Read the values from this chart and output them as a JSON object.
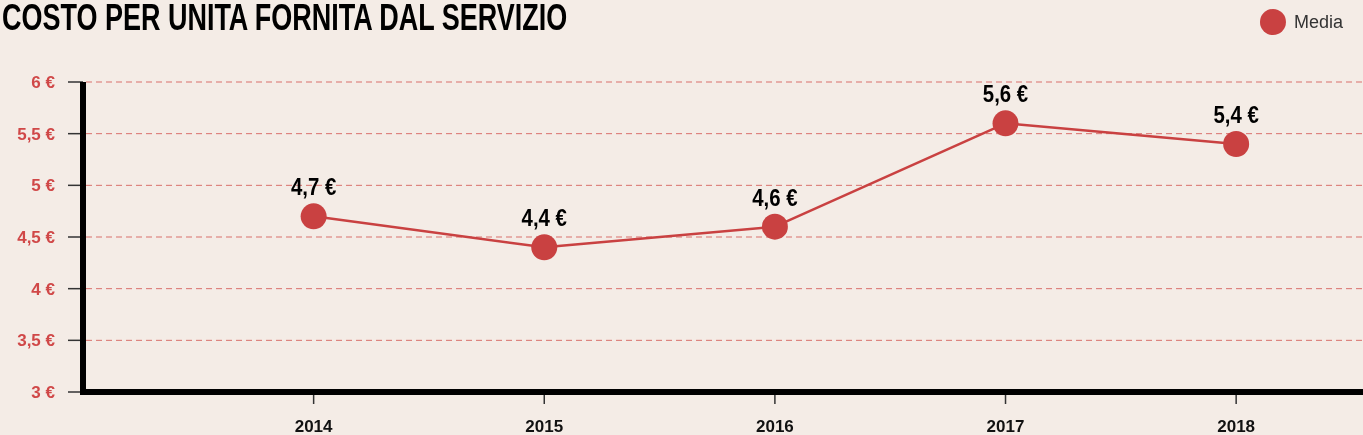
{
  "chart_data": {
    "type": "line",
    "title": "COSTO PER UNITA FORNITA DAL SERVIZIO",
    "x": [
      2014,
      2015,
      2016,
      2017,
      2018
    ],
    "series": [
      {
        "name": "Media",
        "color": "#c94141",
        "values": [
          4.7,
          4.4,
          4.6,
          5.6,
          5.4
        ],
        "value_labels": [
          "4,7 €",
          "4,4 €",
          "4,6 €",
          "5,6 €",
          "5,4 €"
        ]
      }
    ],
    "xlim": [
      2013,
      2018.55
    ],
    "xticks": [
      2014,
      2015,
      2016,
      2017,
      2018
    ],
    "ylim": [
      3,
      6
    ],
    "yticks": [
      {
        "value": 3,
        "label": "3 €"
      },
      {
        "value": 3.5,
        "label": "3,5 €"
      },
      {
        "value": 4,
        "label": "4 €"
      },
      {
        "value": 4.5,
        "label": "4,5 €"
      },
      {
        "value": 5,
        "label": "5 €"
      },
      {
        "value": 5.5,
        "label": "5,5 €"
      },
      {
        "value": 6,
        "label": "6 €"
      }
    ],
    "grid": "y",
    "legend": "top right",
    "marker": "circle",
    "line_style": "solid"
  }
}
